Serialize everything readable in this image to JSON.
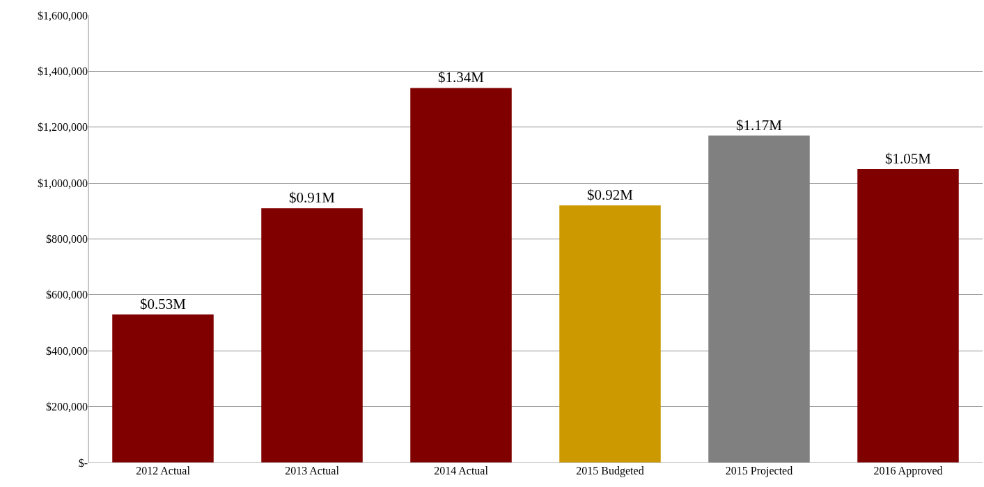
{
  "chart_data": {
    "type": "bar",
    "categories": [
      "2012 Actual",
      "2013 Actual",
      "2014 Actual",
      "2015 Budgeted",
      "2015 Projected",
      "2016 Approved"
    ],
    "values": [
      530000,
      910000,
      1340000,
      920000,
      1170000,
      1050000
    ],
    "colors": [
      "#800000",
      "#800000",
      "#800000",
      "#cc9900",
      "#808080",
      "#800000"
    ],
    "value_labels": [
      "$0.53M",
      "$0.91M",
      "$1.34M",
      "$0.92M",
      "$1.17M",
      "$1.05M"
    ],
    "ylim": [
      0,
      1600000
    ],
    "yticks": [
      {
        "value": 0,
        "label": "$-"
      },
      {
        "value": 200000,
        "label": "$200,000"
      },
      {
        "value": 400000,
        "label": "$400,000"
      },
      {
        "value": 600000,
        "label": "$600,000"
      },
      {
        "value": 800000,
        "label": "$800,000"
      },
      {
        "value": 1000000,
        "label": "$1,000,000"
      },
      {
        "value": 1200000,
        "label": "$1,200,000"
      },
      {
        "value": 1400000,
        "label": "$1,400,000"
      },
      {
        "value": 1600000,
        "label": "$1,600,000"
      }
    ],
    "grid": "y"
  }
}
